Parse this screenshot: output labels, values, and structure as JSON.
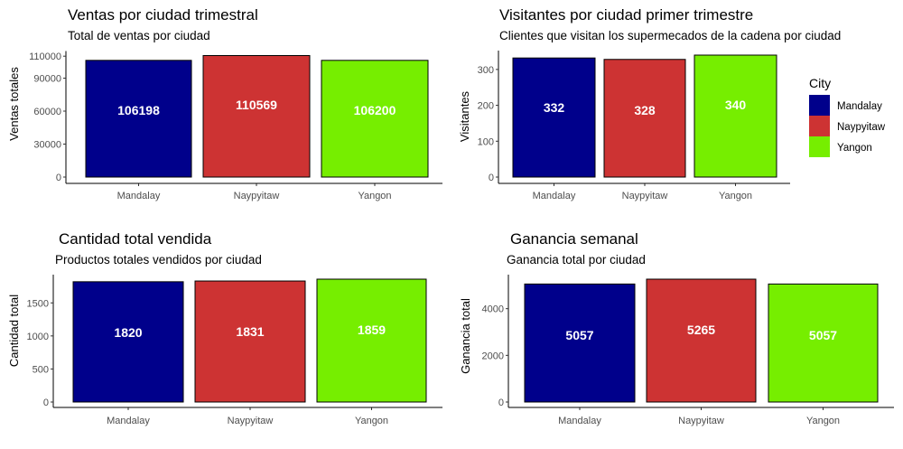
{
  "colors": {
    "Mandalay": "#00008B",
    "Naypyitaw": "#CD3333",
    "Yangon": "#76EE00"
  },
  "legend": {
    "title": "City",
    "items": [
      "Mandalay",
      "Naypyitaw",
      "Yangon"
    ]
  },
  "chart_data": [
    {
      "type": "bar",
      "title": "Ventas por ciudad trimestral",
      "subtitle": "Total de ventas por ciudad",
      "xlabel": "",
      "ylabel": "Ventas totales",
      "categories": [
        "Mandalay",
        "Naypyitaw",
        "Yangon"
      ],
      "values": [
        106198,
        110569,
        106200
      ],
      "labels": [
        "106198",
        "110569",
        "106200"
      ],
      "yticks": [
        0,
        30000,
        60000,
        90000,
        110000
      ],
      "ylim": [
        0,
        110569
      ],
      "grid": false
    },
    {
      "type": "bar",
      "title": "Visitantes por ciudad primer trimestre",
      "subtitle": "Clientes que visitan los supermecados de la cadena por ciudad",
      "xlabel": "",
      "ylabel": "Visitantes",
      "categories": [
        "Mandalay",
        "Naypyitaw",
        "Yangon"
      ],
      "values": [
        332,
        328,
        340
      ],
      "labels": [
        "332",
        "328",
        "340"
      ],
      "yticks": [
        0,
        100,
        200,
        300
      ],
      "ylim": [
        0,
        340
      ],
      "grid": false
    },
    {
      "type": "bar",
      "title": "Cantidad total vendida",
      "subtitle": "Productos totales vendidos por ciudad",
      "xlabel": "",
      "ylabel": "Cantidad total",
      "categories": [
        "Mandalay",
        "Naypyitaw",
        "Yangon"
      ],
      "values": [
        1820,
        1831,
        1859
      ],
      "labels": [
        "1820",
        "1831",
        "1859"
      ],
      "yticks": [
        0,
        500,
        1000,
        1500
      ],
      "ylim": [
        0,
        1859
      ],
      "grid": false
    },
    {
      "type": "bar",
      "title": "Ganancia semanal",
      "subtitle": "Ganancia total por ciudad",
      "xlabel": "",
      "ylabel": "Ganancia total",
      "categories": [
        "Mandalay",
        "Naypyitaw",
        "Yangon"
      ],
      "values": [
        5057,
        5265,
        5057
      ],
      "labels": [
        "5057",
        "5265",
        "5057"
      ],
      "yticks": [
        0,
        2000,
        4000
      ],
      "ylim": [
        0,
        5265
      ],
      "grid": false
    }
  ]
}
